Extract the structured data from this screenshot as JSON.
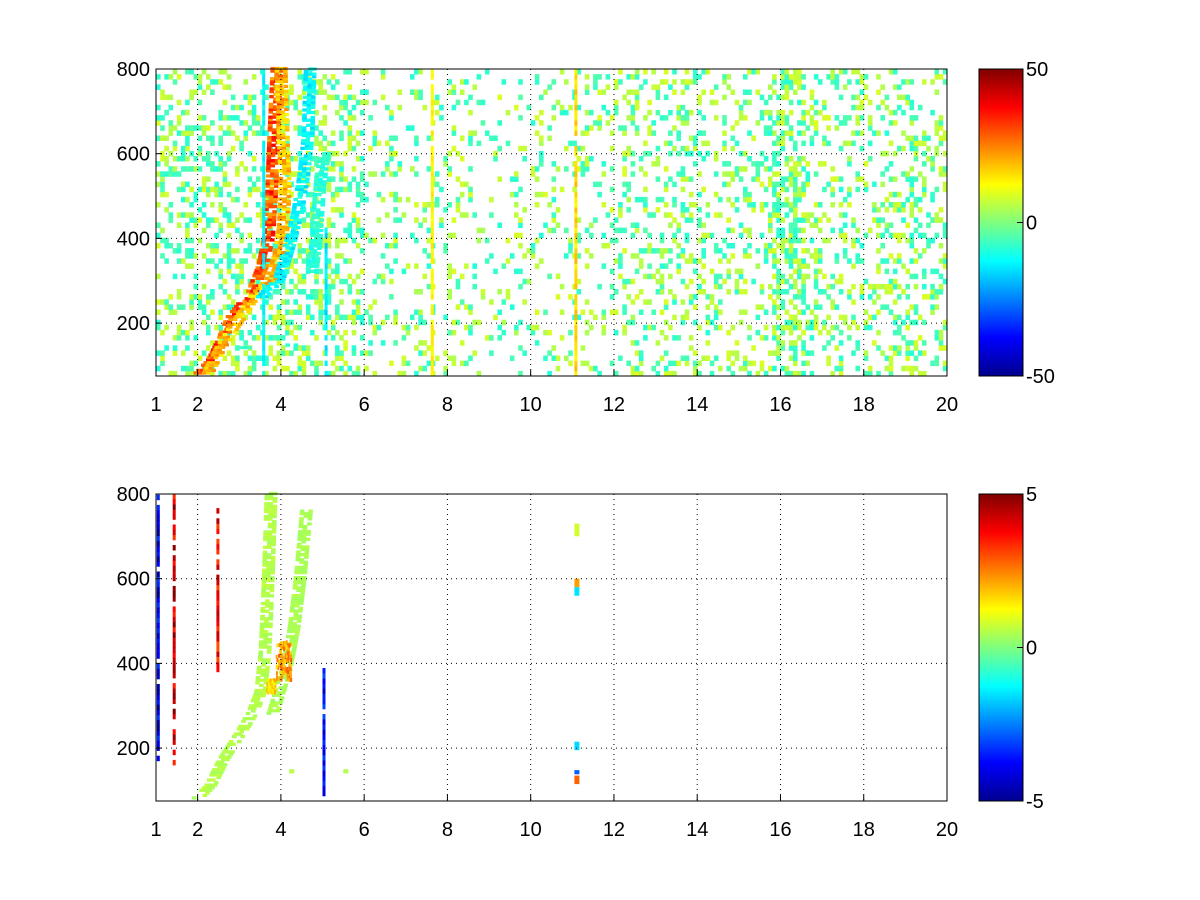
{
  "chart_data": [
    {
      "type": "heatmap",
      "panel": "top",
      "xlim": [
        1,
        20
      ],
      "ylim": [
        75,
        800
      ],
      "xticks": [
        1,
        2,
        4,
        6,
        8,
        10,
        12,
        14,
        16,
        18,
        20
      ],
      "yticks": [
        200,
        400,
        600,
        800
      ],
      "grid": true,
      "colormap": "jet",
      "colorbar": {
        "min": -50,
        "max": 50,
        "ticks": [
          50,
          0,
          -50
        ]
      },
      "features": [
        {
          "kind": "curve",
          "value": 35,
          "points": [
            [
              2.0,
              80
            ],
            [
              2.3,
              110
            ],
            [
              2.55,
              160
            ],
            [
              2.75,
              210
            ],
            [
              3.0,
              240
            ],
            [
              3.25,
              270
            ],
            [
              3.5,
              330
            ],
            [
              3.65,
              400
            ],
            [
              3.72,
              500
            ],
            [
              3.78,
              650
            ],
            [
              3.85,
              800
            ]
          ]
        },
        {
          "kind": "curve",
          "value": 22,
          "points": [
            [
              2.2,
              80
            ],
            [
              2.5,
              140
            ],
            [
              2.9,
              200
            ],
            [
              3.3,
              260
            ],
            [
              3.7,
              300
            ],
            [
              3.9,
              360
            ],
            [
              4.0,
              420
            ],
            [
              4.05,
              520
            ],
            [
              4.0,
              640
            ],
            [
              3.95,
              800
            ]
          ]
        },
        {
          "kind": "curve",
          "value": -15,
          "points": [
            [
              3.5,
              260
            ],
            [
              3.9,
              300
            ],
            [
              4.15,
              380
            ],
            [
              4.35,
              460
            ],
            [
              4.5,
              550
            ],
            [
              4.6,
              640
            ],
            [
              4.62,
              720
            ],
            [
              4.65,
              800
            ]
          ]
        },
        {
          "kind": "curve",
          "value": -10,
          "points": [
            [
              4.7,
              320
            ],
            [
              4.8,
              400
            ],
            [
              4.85,
              480
            ],
            [
              4.9,
              540
            ],
            [
              5.0,
              600
            ]
          ]
        },
        {
          "kind": "curve",
          "value": -8,
          "points": [
            [
              3.1,
              140
            ],
            [
              4.0,
              145
            ],
            [
              5.0,
              150
            ],
            [
              5.6,
              150
            ]
          ]
        },
        {
          "kind": "vline",
          "x": 3.55,
          "value": -14,
          "y": [
            75,
            800
          ]
        },
        {
          "kind": "vline",
          "x": 5.05,
          "value": -16,
          "y": [
            75,
            420
          ]
        },
        {
          "kind": "vline",
          "x": 7.6,
          "value": 14,
          "y": [
            75,
            800
          ]
        },
        {
          "kind": "vline",
          "x": 11.05,
          "value": 18,
          "y": [
            75,
            800
          ]
        },
        {
          "kind": "noise",
          "density": 0.25
        }
      ]
    },
    {
      "type": "heatmap",
      "panel": "bottom",
      "xlim": [
        1,
        20
      ],
      "ylim": [
        75,
        800
      ],
      "xticks": [
        1,
        2,
        4,
        6,
        8,
        10,
        12,
        14,
        16,
        18,
        20
      ],
      "yticks": [
        200,
        400,
        600,
        800
      ],
      "grid": true,
      "colormap": "jet",
      "colorbar": {
        "min": -5,
        "max": 5,
        "ticks": [
          5,
          0,
          -5
        ]
      },
      "features": [
        {
          "kind": "band",
          "value": 0.6,
          "points": [
            [
              2.0,
              80
            ],
            [
              2.3,
              110
            ],
            [
              2.6,
              170
            ],
            [
              3.0,
              230
            ],
            [
              3.3,
              280
            ],
            [
              3.5,
              330
            ],
            [
              3.6,
              420
            ],
            [
              3.65,
              520
            ],
            [
              3.7,
              650
            ],
            [
              3.75,
              800
            ]
          ]
        },
        {
          "kind": "band",
          "value": 0.5,
          "points": [
            [
              3.8,
              280
            ],
            [
              4.1,
              380
            ],
            [
              4.3,
              480
            ],
            [
              4.45,
              600
            ],
            [
              4.6,
              760
            ]
          ]
        },
        {
          "kind": "blob",
          "value": 2.5,
          "center": [
            4.05,
            410
          ],
          "size": [
            0.35,
            90
          ]
        },
        {
          "kind": "blob",
          "value": 1.8,
          "center": [
            3.75,
            350
          ],
          "size": [
            0.2,
            30
          ]
        },
        {
          "kind": "vline",
          "x": 1.4,
          "value": 4.6,
          "y": [
            160,
            790
          ]
        },
        {
          "kind": "vline",
          "x": 2.45,
          "value": 4.2,
          "y": [
            380,
            760
          ]
        },
        {
          "kind": "vline",
          "x": 5.0,
          "value": -4,
          "y": [
            75,
            380
          ]
        },
        {
          "kind": "vline",
          "x": 1.02,
          "value": -4.5,
          "y": [
            170,
            790
          ]
        },
        {
          "kind": "seg",
          "x": 11.05,
          "value": 0.8,
          "y": [
            700,
            730
          ]
        },
        {
          "kind": "seg",
          "x": 11.05,
          "value": 2.2,
          "y": [
            580,
            600
          ]
        },
        {
          "kind": "seg",
          "x": 11.05,
          "value": -1.5,
          "y": [
            560,
            580
          ]
        },
        {
          "kind": "seg",
          "x": 11.05,
          "value": -1.6,
          "y": [
            195,
            215
          ]
        },
        {
          "kind": "seg",
          "x": 11.05,
          "value": -2.8,
          "y": [
            138,
            148
          ]
        },
        {
          "kind": "seg",
          "x": 11.05,
          "value": 2.8,
          "y": [
            115,
            135
          ]
        },
        {
          "kind": "seg",
          "x": 4.2,
          "value": 0.6,
          "y": [
            140,
            150
          ]
        },
        {
          "kind": "seg",
          "x": 5.5,
          "value": 0.5,
          "y": [
            140,
            150
          ]
        }
      ]
    }
  ]
}
